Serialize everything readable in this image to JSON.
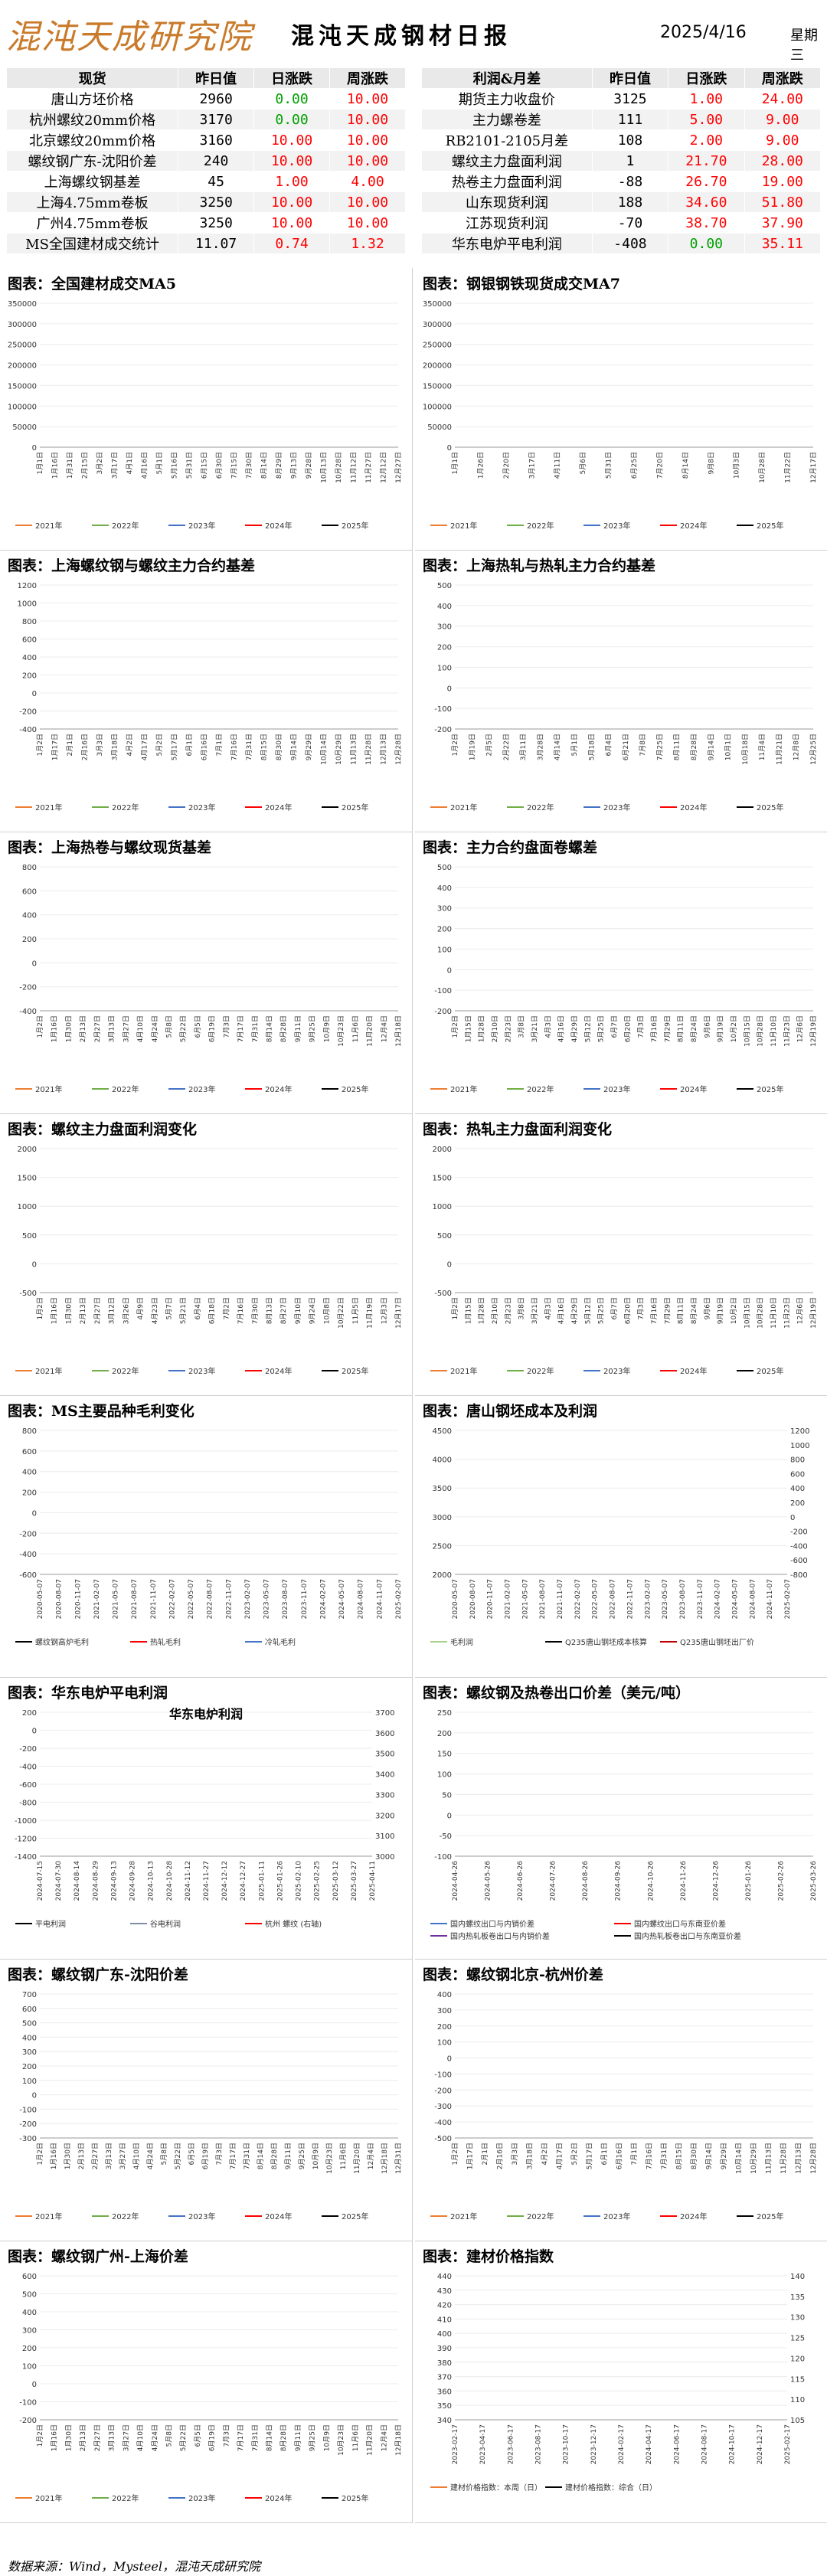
{
  "header": {
    "logo": "混沌天成研究院",
    "title": "混沌天成钢材日报",
    "date": "2025/4/16",
    "weekday": "星期三"
  },
  "tables": {
    "left": {
      "columns": [
        "现货",
        "昨日值",
        "日涨跌",
        "周涨跌"
      ],
      "rows": [
        [
          "唐山方坯价格",
          "2960",
          "0.00",
          "10.00"
        ],
        [
          "杭州螺纹20mm价格",
          "3170",
          "0.00",
          "10.00"
        ],
        [
          "北京螺纹20mm价格",
          "3160",
          "10.00",
          "10.00"
        ],
        [
          "螺纹钢广东-沈阳价差",
          "240",
          "10.00",
          "10.00"
        ],
        [
          "上海螺纹钢基差",
          "45",
          "1.00",
          "4.00"
        ],
        [
          "上海4.75mm卷板",
          "3250",
          "10.00",
          "10.00"
        ],
        [
          "广州4.75mm卷板",
          "3250",
          "10.00",
          "10.00"
        ],
        [
          "MS全国建材成交统计",
          "11.07",
          "0.74",
          "1.32"
        ]
      ]
    },
    "right": {
      "columns": [
        "利润&月差",
        "昨日值",
        "日涨跌",
        "周涨跌"
      ],
      "rows": [
        [
          "期货主力收盘价",
          "3125",
          "1.00",
          "24.00"
        ],
        [
          "主力螺卷差",
          "111",
          "5.00",
          "9.00"
        ],
        [
          "RB2101-2105月差",
          "108",
          "2.00",
          "9.00"
        ],
        [
          "螺纹主力盘面利润",
          "1",
          "21.70",
          "28.00"
        ],
        [
          "热卷主力盘面利润",
          "-88",
          "26.70",
          "19.00"
        ],
        [
          "山东现货利润",
          "188",
          "34.60",
          "51.80"
        ],
        [
          "江苏现货利润",
          "-70",
          "38.70",
          "37.90"
        ],
        [
          "华东电炉平电利润",
          "-408",
          "0.00",
          "35.11"
        ]
      ]
    },
    "colors": {
      "red": "#ff0000",
      "green": "#00a000"
    }
  },
  "years": [
    "2021年",
    "2022年",
    "2023年",
    "2024年",
    "2025年"
  ],
  "year_colors": [
    "#ed7d31",
    "#70ad47",
    "#4472c4",
    "#ff0000",
    "#000000"
  ],
  "charts": [
    {
      "title": "图表：全国建材成交MA5",
      "yticks": [
        "0",
        "50000",
        "100000",
        "150000",
        "200000",
        "250000",
        "300000",
        "350000"
      ],
      "ymin": 0,
      "ymax": 350000,
      "xticks": [
        "1月1日",
        "1月16日",
        "1月31日",
        "2月15日",
        "3月2日",
        "3月17日",
        "4月1日",
        "4月16日",
        "5月1日",
        "5月16日",
        "5月31日",
        "6月15日",
        "6月30日",
        "7月15日",
        "7月30日",
        "8月14日",
        "8月29日",
        "9月13日",
        "9月28日",
        "10月13日",
        "10月28日",
        "11月12日",
        "11月27日",
        "12月12日",
        "12月27日"
      ],
      "legend": [
        "2021年",
        "2022年",
        "2023年",
        "2024年",
        "2025年"
      ]
    },
    {
      "title": "图表：钢银钢铁现货成交MA7",
      "yticks": [
        "0",
        "50000",
        "100000",
        "150000",
        "200000",
        "250000",
        "300000",
        "350000"
      ],
      "ymin": 0,
      "ymax": 350000,
      "xticks": [
        "1月1日",
        "1月26日",
        "2月20日",
        "3月17日",
        "4月11日",
        "5月6日",
        "5月31日",
        "6月25日",
        "7月20日",
        "8月14日",
        "9月8日",
        "10月3日",
        "10月28日",
        "11月22日",
        "12月17日"
      ],
      "legend": [
        "2021年",
        "2022年",
        "2023年",
        "2024年",
        "2025年"
      ]
    },
    {
      "title": "图表：上海螺纹钢与螺纹主力合约基差",
      "yticks": [
        "-400",
        "-200",
        "0",
        "200",
        "400",
        "600",
        "800",
        "1000",
        "1200"
      ],
      "ymin": -400,
      "ymax": 1200,
      "xticks": [
        "1月2日",
        "1月17日",
        "2月1日",
        "2月16日",
        "3月3日",
        "3月18日",
        "4月2日",
        "4月17日",
        "5月2日",
        "5月17日",
        "6月1日",
        "6月16日",
        "7月1日",
        "7月16日",
        "7月31日",
        "8月15日",
        "8月30日",
        "9月14日",
        "9月29日",
        "10月14日",
        "10月29日",
        "11月13日",
        "11月28日",
        "12月13日",
        "12月28日"
      ],
      "legend": [
        "2021年",
        "2022年",
        "2023年",
        "2024年",
        "2025年"
      ]
    },
    {
      "title": "图表：上海热轧与热轧主力合约基差",
      "yticks": [
        "-200",
        "-100",
        "0",
        "100",
        "200",
        "300",
        "400",
        "500"
      ],
      "ymin": -200,
      "ymax": 500,
      "xticks": [
        "1月2日",
        "1月19日",
        "2月5日",
        "2月22日",
        "3月11日",
        "3月28日",
        "4月14日",
        "5月1日",
        "5月18日",
        "6月4日",
        "6月21日",
        "7月8日",
        "7月25日",
        "8月11日",
        "8月28日",
        "9月14日",
        "10月1日",
        "10月18日",
        "11月4日",
        "11月21日",
        "12月8日",
        "12月25日"
      ],
      "legend": [
        "2021年",
        "2022年",
        "2023年",
        "2024年",
        "2025年"
      ]
    },
    {
      "title": "图表：上海热卷与螺纹现货基差",
      "yticks": [
        "-400",
        "-200",
        "0",
        "200",
        "400",
        "600",
        "800"
      ],
      "ymin": -400,
      "ymax": 800,
      "xticks": [
        "1月2日",
        "1月16日",
        "1月30日",
        "2月13日",
        "2月27日",
        "3月13日",
        "3月27日",
        "4月10日",
        "4月24日",
        "5月8日",
        "5月22日",
        "6月5日",
        "6月19日",
        "7月3日",
        "7月17日",
        "7月31日",
        "8月14日",
        "8月28日",
        "9月11日",
        "9月25日",
        "10月9日",
        "10月23日",
        "11月6日",
        "11月20日",
        "12月4日",
        "12月18日"
      ],
      "legend": [
        "2021年",
        "2022年",
        "2023年",
        "2024年",
        "2025年"
      ]
    },
    {
      "title": "图表：主力合约盘面卷螺差",
      "yticks": [
        "-200",
        "-100",
        "0",
        "100",
        "200",
        "300",
        "400",
        "500"
      ],
      "ymin": -200,
      "ymax": 500,
      "xticks": [
        "1月2日",
        "1月15日",
        "1月28日",
        "2月10日",
        "2月23日",
        "3月8日",
        "3月21日",
        "4月3日",
        "4月16日",
        "4月29日",
        "5月12日",
        "5月25日",
        "6月7日",
        "6月20日",
        "7月3日",
        "7月16日",
        "7月29日",
        "8月11日",
        "8月24日",
        "9月6日",
        "9月19日",
        "10月2日",
        "10月15日",
        "10月28日",
        "11月10日",
        "11月23日",
        "12月6日",
        "12月19日"
      ],
      "legend": [
        "2021年",
        "2022年",
        "2023年",
        "2024年",
        "2025年"
      ]
    },
    {
      "title": "图表：螺纹主力盘面利润变化",
      "yticks": [
        "-500",
        "0",
        "500",
        "1000",
        "1500",
        "2000"
      ],
      "ymin": -500,
      "ymax": 2000,
      "xticks": [
        "1月2日",
        "1月16日",
        "1月30日",
        "2月13日",
        "2月27日",
        "3月12日",
        "3月26日",
        "4月9日",
        "4月23日",
        "5月7日",
        "5月21日",
        "6月4日",
        "6月18日",
        "7月2日",
        "7月16日",
        "7月30日",
        "8月13日",
        "8月27日",
        "9月10日",
        "9月24日",
        "10月8日",
        "10月22日",
        "11月5日",
        "11月19日",
        "12月3日",
        "12月17日"
      ],
      "legend": [
        "2021年",
        "2022年",
        "2023年",
        "2024年",
        "2025年"
      ]
    },
    {
      "title": "图表：热轧主力盘面利润变化",
      "yticks": [
        "-500",
        "0",
        "500",
        "1000",
        "1500",
        "2000"
      ],
      "ymin": -500,
      "ymax": 2000,
      "xticks": [
        "1月2日",
        "1月15日",
        "1月28日",
        "2月10日",
        "2月23日",
        "3月8日",
        "3月21日",
        "4月3日",
        "4月16日",
        "4月29日",
        "5月12日",
        "5月25日",
        "6月7日",
        "6月20日",
        "7月3日",
        "7月16日",
        "7月29日",
        "8月11日",
        "8月24日",
        "9月6日",
        "9月19日",
        "10月2日",
        "10月15日",
        "10月28日",
        "11月10日",
        "11月23日",
        "12月6日",
        "12月19日"
      ],
      "legend": [
        "2021年",
        "2022年",
        "2023年",
        "2024年",
        "2025年"
      ]
    },
    {
      "title": "图表：MS主要品种毛利变化",
      "yticks": [
        "-600",
        "-400",
        "-200",
        "0",
        "200",
        "400",
        "600",
        "800"
      ],
      "ymin": -600,
      "ymax": 800,
      "xticks": [
        "2020-05-07",
        "2020-08-07",
        "2020-11-07",
        "2021-02-07",
        "2021-05-07",
        "2021-08-07",
        "2021-11-07",
        "2022-02-07",
        "2022-05-07",
        "2022-08-07",
        "2022-11-07",
        "2023-02-07",
        "2023-05-07",
        "2023-08-07",
        "2023-11-07",
        "2024-02-07",
        "2024-05-07",
        "2024-08-07",
        "2024-11-07",
        "2025-02-07"
      ],
      "legend": [
        "螺纹钢高炉毛利",
        "热轧毛利",
        "冷轧毛利"
      ]
    },
    {
      "title": "图表：唐山钢坯成本及利润",
      "yticks": [
        "2000",
        "2500",
        "3000",
        "3500",
        "4000",
        "4500"
      ],
      "ymin": 2000,
      "ymax": 4500,
      "y2ticks": [
        "-800",
        "-600",
        "-400",
        "-200",
        "0",
        "200",
        "400",
        "600",
        "800",
        "1000",
        "1200"
      ],
      "y2min": -800,
      "y2max": 1200,
      "xticks": [
        "2020-05-07",
        "2020-08-07",
        "2020-11-07",
        "2021-02-07",
        "2021-05-07",
        "2021-08-07",
        "2021-11-07",
        "2022-02-07",
        "2022-05-07",
        "2022-08-07",
        "2022-11-07",
        "2023-02-07",
        "2023-05-07",
        "2023-08-07",
        "2023-11-07",
        "2024-02-07",
        "2024-05-07",
        "2024-08-07",
        "2024-11-07",
        "2025-02-07"
      ],
      "legend": [
        "毛利润",
        "Q235唐山钢坯成本核算",
        "Q235唐山钢坯出厂价"
      ]
    },
    {
      "title": "图表：华东电炉平电利润",
      "subtitle": "华东电炉利润",
      "yticks": [
        "-1400",
        "-1200",
        "-1000",
        "-800",
        "-600",
        "-400",
        "-200",
        "0",
        "200"
      ],
      "ymin": -1400,
      "ymax": 200,
      "y2ticks": [
        "3000",
        "3100",
        "3200",
        "3300",
        "3400",
        "3500",
        "3600",
        "3700"
      ],
      "y2min": 3000,
      "y2max": 3700,
      "xticks": [
        "2024-07-15",
        "2024-07-30",
        "2024-08-14",
        "2024-08-29",
        "2024-09-13",
        "2024-09-28",
        "2024-10-13",
        "2024-10-28",
        "2024-11-12",
        "2024-11-27",
        "2024-12-12",
        "2024-12-27",
        "2025-01-11",
        "2025-01-26",
        "2025-02-10",
        "2025-02-25",
        "2025-03-12",
        "2025-03-27",
        "2025-04-11"
      ],
      "legend": [
        "平电利润",
        "谷电利润",
        "杭州 螺纹 (右轴)"
      ]
    },
    {
      "title": "图表：螺纹钢及热卷出口价差（美元/吨）",
      "yticks": [
        "-100",
        "-50",
        "0",
        "50",
        "100",
        "150",
        "200",
        "250"
      ],
      "ymin": -100,
      "ymax": 250,
      "xticks": [
        "2024-04-26",
        "2024-05-26",
        "2024-06-26",
        "2024-07-26",
        "2024-08-26",
        "2024-09-26",
        "2024-10-26",
        "2024-11-26",
        "2024-12-26",
        "2025-01-26",
        "2025-02-26",
        "2025-03-26"
      ],
      "legend": [
        "国内螺纹出口与内销价差",
        "国内螺纹出口与东南亚价差",
        "国内热轧板卷出口与内销价差",
        "国内热轧板卷出口与东南亚价差"
      ]
    },
    {
      "title": "图表：螺纹钢广东-沈阳价差",
      "yticks": [
        "-300",
        "-200",
        "-100",
        "0",
        "100",
        "200",
        "300",
        "400",
        "500",
        "600",
        "700"
      ],
      "ymin": -300,
      "ymax": 700,
      "xticks": [
        "1月2日",
        "1月16日",
        "1月30日",
        "2月13日",
        "2月27日",
        "3月13日",
        "3月27日",
        "4月10日",
        "4月24日",
        "5月8日",
        "5月22日",
        "6月5日",
        "6月19日",
        "7月3日",
        "7月17日",
        "7月31日",
        "8月14日",
        "8月28日",
        "9月11日",
        "9月25日",
        "10月9日",
        "10月23日",
        "11月6日",
        "11月20日",
        "12月4日",
        "12月18日",
        "12月31日"
      ],
      "legend": [
        "2021年",
        "2022年",
        "2023年",
        "2024年",
        "2025年"
      ]
    },
    {
      "title": "图表：螺纹钢北京-杭州价差",
      "yticks": [
        "-500",
        "-400",
        "-300",
        "-200",
        "-100",
        "0",
        "100",
        "200",
        "300",
        "400"
      ],
      "ymin": -500,
      "ymax": 400,
      "xticks": [
        "1月2日",
        "1月17日",
        "2月1日",
        "2月16日",
        "3月3日",
        "3月18日",
        "4月2日",
        "4月17日",
        "5月2日",
        "5月17日",
        "6月1日",
        "6月16日",
        "7月1日",
        "7月16日",
        "7月31日",
        "8月15日",
        "8月30日",
        "9月14日",
        "9月29日",
        "10月14日",
        "10月29日",
        "11月13日",
        "11月28日",
        "12月13日",
        "12月28日"
      ],
      "legend": [
        "2021年",
        "2022年",
        "2023年",
        "2024年",
        "2025年"
      ]
    },
    {
      "title": "图表：螺纹钢广州-上海价差",
      "yticks": [
        "-200",
        "-100",
        "0",
        "100",
        "200",
        "300",
        "400",
        "500",
        "600"
      ],
      "ymin": -200,
      "ymax": 600,
      "xticks": [
        "1月2日",
        "1月16日",
        "1月30日",
        "2月13日",
        "2月27日",
        "3月13日",
        "3月27日",
        "4月10日",
        "4月24日",
        "5月8日",
        "5月22日",
        "6月5日",
        "6月19日",
        "7月3日",
        "7月17日",
        "7月31日",
        "8月14日",
        "8月28日",
        "9月11日",
        "9月25日",
        "10月9日",
        "10月23日",
        "11月6日",
        "11月20日",
        "12月4日",
        "12月18日"
      ],
      "legend": [
        "2021年",
        "2022年",
        "2023年",
        "2024年",
        "2025年"
      ]
    },
    {
      "title": "图表：建材价格指数",
      "yticks": [
        "340",
        "350",
        "360",
        "370",
        "380",
        "390",
        "400",
        "410",
        "420",
        "430",
        "440"
      ],
      "ymin": 340,
      "ymax": 440,
      "y2ticks": [
        "105",
        "110",
        "115",
        "120",
        "125",
        "130",
        "135",
        "140"
      ],
      "y2min": 105,
      "y2max": 140,
      "xticks": [
        "2023-02-17",
        "2023-04-17",
        "2023-06-17",
        "2023-08-17",
        "2023-10-17",
        "2023-12-17",
        "2024-02-17",
        "2024-04-17",
        "2024-06-17",
        "2024-08-17",
        "2024-10-17",
        "2024-12-17",
        "2025-02-17"
      ],
      "legend": [
        "建材价格指数：本周（日）",
        "建材价格指数：综合（日）"
      ]
    }
  ],
  "chart_data": [],
  "footer": "数据来源：Wind，Mysteel，混沌天成研究院"
}
